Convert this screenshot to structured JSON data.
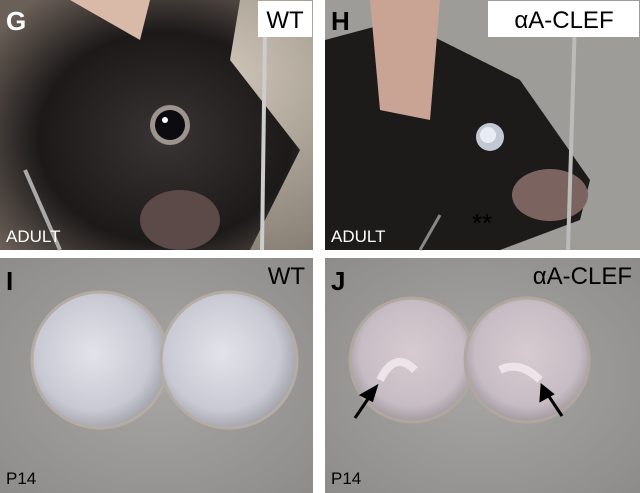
{
  "panels": [
    {
      "letter": "G",
      "label": "WT",
      "stage": "ADULT"
    },
    {
      "letter": "H",
      "label": "αA-CLEF",
      "stage": "ADULT",
      "annotation": "**"
    },
    {
      "letter": "I",
      "label": "WT",
      "stage": "P14"
    },
    {
      "letter": "J",
      "label": "αA-CLEF",
      "stage": "P14"
    }
  ]
}
